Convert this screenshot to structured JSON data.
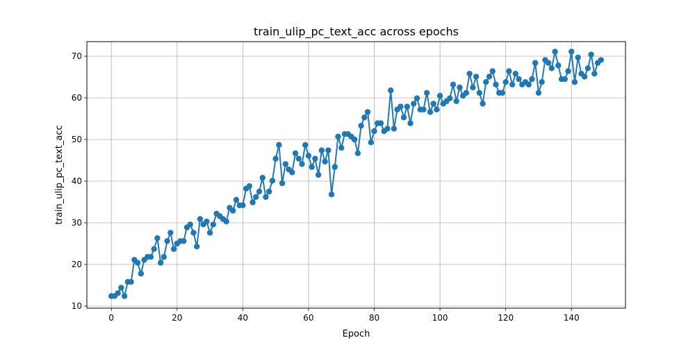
{
  "chart_data": {
    "type": "line",
    "title": "train_ulip_pc_text_acc across epochs",
    "xlabel": "Epoch",
    "ylabel": "train_ulip_pc_text_acc",
    "xlim": [
      -7.45,
      156.45
    ],
    "ylim": [
      9.5,
      73.5
    ],
    "xticks": [
      0,
      20,
      40,
      60,
      80,
      100,
      120,
      140
    ],
    "yticks": [
      10,
      20,
      30,
      40,
      50,
      60,
      70
    ],
    "grid": true,
    "legend": "none",
    "series": [
      {
        "color": "#1f77b4",
        "marker": "circle",
        "x": [
          0,
          1,
          2,
          3,
          4,
          5,
          6,
          7,
          8,
          9,
          10,
          11,
          12,
          13,
          14,
          15,
          16,
          17,
          18,
          19,
          20,
          21,
          22,
          23,
          24,
          25,
          26,
          27,
          28,
          29,
          30,
          31,
          32,
          33,
          34,
          35,
          36,
          37,
          38,
          39,
          40,
          41,
          42,
          43,
          44,
          45,
          46,
          47,
          48,
          49,
          50,
          51,
          52,
          53,
          54,
          55,
          56,
          57,
          58,
          59,
          60,
          61,
          62,
          63,
          64,
          65,
          66,
          67,
          68,
          69,
          70,
          71,
          72,
          73,
          74,
          75,
          76,
          77,
          78,
          79,
          80,
          81,
          82,
          83,
          84,
          85,
          86,
          87,
          88,
          89,
          90,
          91,
          92,
          93,
          94,
          95,
          96,
          97,
          98,
          99,
          100,
          101,
          102,
          103,
          104,
          105,
          106,
          107,
          108,
          109,
          110,
          111,
          112,
          113,
          114,
          115,
          116,
          117,
          118,
          119,
          120,
          121,
          122,
          123,
          124,
          125,
          126,
          127,
          128,
          129,
          130,
          131,
          132,
          133,
          134,
          135,
          136,
          137,
          138,
          139,
          140,
          141,
          142,
          143,
          144,
          145,
          146,
          147,
          148,
          149
        ],
        "values": [
          12.4,
          12.4,
          13.1,
          14.4,
          12.4,
          15.8,
          15.8,
          21.1,
          20.4,
          17.8,
          21.1,
          21.8,
          21.8,
          23.7,
          26.3,
          20.4,
          21.8,
          25.6,
          27.6,
          23.7,
          25.0,
          25.6,
          25.6,
          28.9,
          29.6,
          27.6,
          24.3,
          30.9,
          29.6,
          30.3,
          27.6,
          29.6,
          32.2,
          31.6,
          30.9,
          30.3,
          33.6,
          32.9,
          35.5,
          34.2,
          34.2,
          38.2,
          38.8,
          34.9,
          36.2,
          37.5,
          40.8,
          36.2,
          37.5,
          40.1,
          45.4,
          48.7,
          39.5,
          44.1,
          42.8,
          42.1,
          46.7,
          45.4,
          44.1,
          48.7,
          46.1,
          43.4,
          45.4,
          41.5,
          47.4,
          44.7,
          47.4,
          36.8,
          43.4,
          50.7,
          48.0,
          51.3,
          51.3,
          50.7,
          50.0,
          46.7,
          53.3,
          55.3,
          56.6,
          49.3,
          52.0,
          53.9,
          53.9,
          52.0,
          52.6,
          61.8,
          52.6,
          57.2,
          57.9,
          55.3,
          57.9,
          53.9,
          58.6,
          59.9,
          57.2,
          57.2,
          61.2,
          56.6,
          58.6,
          57.2,
          60.5,
          58.6,
          59.2,
          59.9,
          63.2,
          59.2,
          62.5,
          60.5,
          61.2,
          65.8,
          62.5,
          65.1,
          61.2,
          58.6,
          63.8,
          65.1,
          66.4,
          63.2,
          61.2,
          61.2,
          63.8,
          66.4,
          63.2,
          65.8,
          64.5,
          63.2,
          63.8,
          63.2,
          64.5,
          68.4,
          61.2,
          63.8,
          69.1,
          68.4,
          67.1,
          71.1,
          67.8,
          64.5,
          64.5,
          66.4,
          71.1,
          63.8,
          69.7,
          65.8,
          65.1,
          67.1,
          70.4,
          65.8,
          68.4,
          69.1
        ]
      }
    ]
  }
}
